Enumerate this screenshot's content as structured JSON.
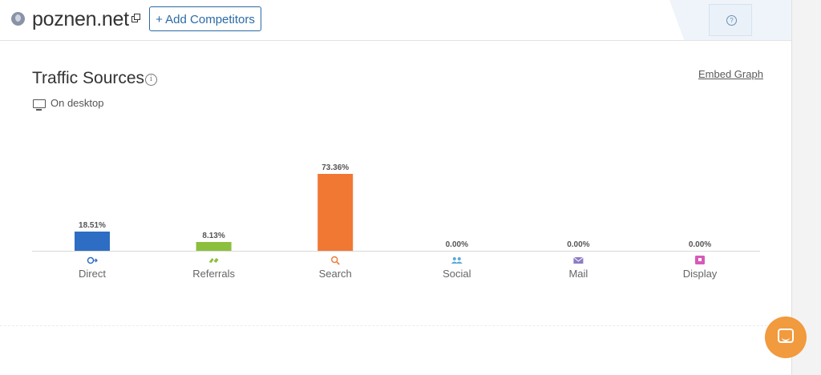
{
  "header": {
    "site_name": "poznen.net",
    "add_competitors_label": "+ Add Competitors",
    "help_label": "?"
  },
  "section": {
    "title": "Traffic Sources",
    "info_label": "i",
    "embed_label": "Embed Graph",
    "device_label": "On desktop"
  },
  "colors": {
    "accent": "#2b6aa6",
    "chat": "#f19a3e"
  },
  "chart_data": {
    "type": "bar",
    "categories": [
      "Direct",
      "Referrals",
      "Search",
      "Social",
      "Mail",
      "Display"
    ],
    "values": [
      18.51,
      8.13,
      73.36,
      0.0,
      0.0,
      0.0
    ],
    "value_labels": [
      "18.51%",
      "8.13%",
      "73.36%",
      "0.00%",
      "0.00%",
      "0.00%"
    ],
    "colors": [
      "#2d6ec4",
      "#8bbf3d",
      "#f07833",
      "#5aa9d6",
      "#8e7cc3",
      "#d65ab8"
    ],
    "icons": [
      "direct-icon",
      "referrals-icon",
      "search-icon",
      "social-icon",
      "mail-icon",
      "display-icon"
    ],
    "ylim": [
      0,
      100
    ],
    "grid": false
  }
}
